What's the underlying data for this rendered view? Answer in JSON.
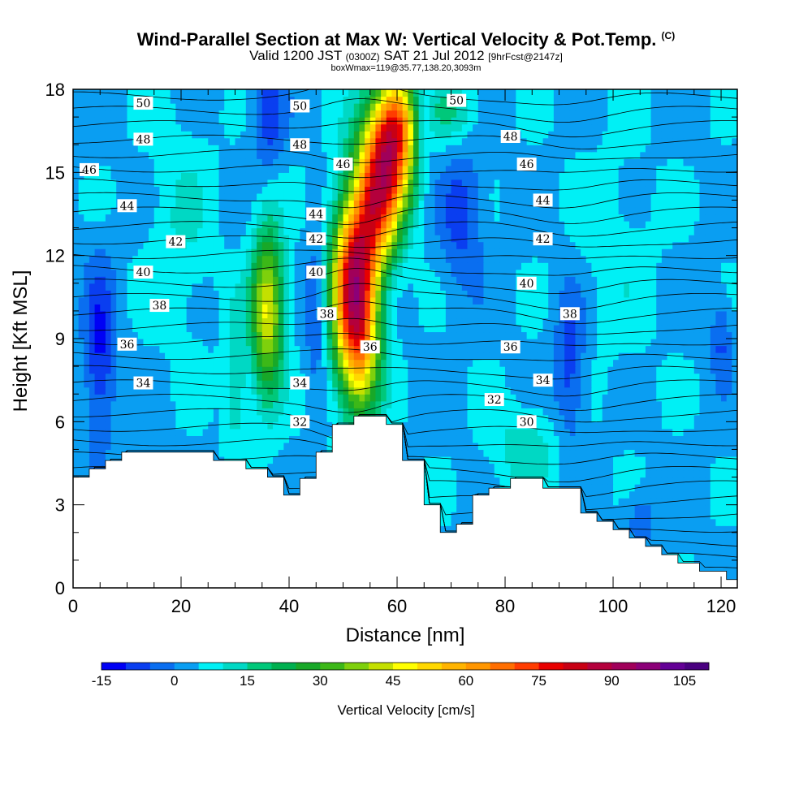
{
  "title_main": "Wind-Parallel Section at Max W: Vertical Velocity & Pot.Temp.",
  "title_mark": "(C)",
  "subtitle_a": "Valid 1200 JST",
  "subtitle_b": "(0300Z)",
  "subtitle_c": "SAT 21 Jul 2012",
  "subtitle_d": "[9hrFcst@2147z]",
  "subtitle2": "boxWmax=119@35.77,138.20,3093m",
  "chart_data": {
    "type": "heatmap",
    "xlabel": "Distance [nm]",
    "ylabel": "Height [Kft MSL]",
    "xlim": [
      0,
      123
    ],
    "ylim": [
      0,
      18
    ],
    "x_ticks": [
      0,
      20,
      40,
      60,
      80,
      100,
      120
    ],
    "y_ticks": [
      0,
      3,
      6,
      9,
      12,
      15,
      18
    ],
    "colorbar": {
      "title": "Vertical Velocity [cm/s]",
      "min": -15,
      "max": 110,
      "step": 5,
      "labels": [
        -15,
        0,
        15,
        30,
        45,
        60,
        75,
        90,
        105
      ],
      "colors": [
        "#0000f5",
        "#0a3ef0",
        "#0a6ef0",
        "#0a9ef2",
        "#00f0f5",
        "#00d8c4",
        "#00c87a",
        "#00b050",
        "#18a828",
        "#3cb818",
        "#7ed00c",
        "#c4e000",
        "#ffff00",
        "#ffd800",
        "#ffb400",
        "#ff9600",
        "#ff6e00",
        "#ff3c00",
        "#e80000",
        "#c80014",
        "#b4003c",
        "#a0005a",
        "#8c0078",
        "#640096",
        "#4a0080"
      ]
    },
    "terrain": [
      [
        0,
        4
      ],
      [
        3,
        4
      ],
      [
        3,
        4.3
      ],
      [
        6,
        4.3
      ],
      [
        6,
        4.6
      ],
      [
        9,
        4.6
      ],
      [
        9,
        4.9
      ],
      [
        26,
        4.9
      ],
      [
        26,
        4.6
      ],
      [
        32,
        4.6
      ],
      [
        32,
        4.3
      ],
      [
        36,
        4.3
      ],
      [
        36,
        4.0
      ],
      [
        39,
        4.0
      ],
      [
        39,
        3.35
      ],
      [
        42,
        3.35
      ],
      [
        42,
        3.95
      ],
      [
        45,
        3.95
      ],
      [
        45,
        4.9
      ],
      [
        48,
        4.9
      ],
      [
        48,
        5.9
      ],
      [
        52,
        5.9
      ],
      [
        52,
        6.2
      ],
      [
        58,
        6.2
      ],
      [
        58,
        5.9
      ],
      [
        61,
        5.9
      ],
      [
        61,
        4.6
      ],
      [
        65,
        4.6
      ],
      [
        65,
        3.0
      ],
      [
        68,
        3.0
      ],
      [
        68,
        2.0
      ],
      [
        71,
        2.0
      ],
      [
        71,
        2.3
      ],
      [
        74,
        2.3
      ],
      [
        74,
        3.35
      ],
      [
        77,
        3.35
      ],
      [
        77,
        3.6
      ],
      [
        81,
        3.6
      ],
      [
        81,
        3.95
      ],
      [
        87,
        3.95
      ],
      [
        87,
        3.6
      ],
      [
        94,
        3.6
      ],
      [
        94,
        2.7
      ],
      [
        97,
        2.7
      ],
      [
        97,
        2.4
      ],
      [
        100,
        2.4
      ],
      [
        100,
        2.1
      ],
      [
        103,
        2.1
      ],
      [
        103,
        1.8
      ],
      [
        106,
        1.8
      ],
      [
        106,
        1.5
      ],
      [
        109,
        1.5
      ],
      [
        109,
        1.2
      ],
      [
        112,
        1.2
      ],
      [
        112,
        0.9
      ],
      [
        116,
        0.9
      ],
      [
        116,
        0.6
      ],
      [
        121,
        0.6
      ],
      [
        121,
        0.3
      ],
      [
        123,
        0.3
      ]
    ],
    "w_features": [
      {
        "x": 58,
        "y": 15.5,
        "rx": 5,
        "ry": 2.2,
        "w": 70
      },
      {
        "x": 52,
        "y": 11.2,
        "rx": 4,
        "ry": 2.8,
        "w": 72
      },
      {
        "x": 53,
        "y": 8.5,
        "rx": 4,
        "ry": 2.5,
        "w": 40
      },
      {
        "x": 56,
        "y": 13.2,
        "rx": 4,
        "ry": 2,
        "w": 40
      },
      {
        "x": 60,
        "y": 17.2,
        "rx": 3.5,
        "ry": 1.6,
        "w": 35
      },
      {
        "x": 36,
        "y": 10,
        "rx": 3,
        "ry": 3,
        "w": 42
      },
      {
        "x": 30,
        "y": 7.5,
        "rx": 2,
        "ry": 2.5,
        "w": 12
      },
      {
        "x": 70,
        "y": 17.2,
        "rx": 5,
        "ry": 1.2,
        "w": 12
      },
      {
        "x": 84,
        "y": 5,
        "rx": 6,
        "ry": 1.5,
        "w": 10
      },
      {
        "x": 5,
        "y": 8.5,
        "rx": 3,
        "ry": 3.2,
        "w": -15
      },
      {
        "x": 36,
        "y": 17,
        "rx": 3,
        "ry": 2,
        "w": -12
      },
      {
        "x": 65,
        "y": 17,
        "rx": 2,
        "ry": 2,
        "w": -10
      },
      {
        "x": 72,
        "y": 13.5,
        "rx": 4,
        "ry": 2.5,
        "w": -12
      },
      {
        "x": 92,
        "y": 8,
        "rx": 3,
        "ry": 3,
        "w": -12
      },
      {
        "x": 45,
        "y": 10,
        "rx": 2,
        "ry": 3,
        "w": -10
      },
      {
        "x": 120,
        "y": 9,
        "rx": 2,
        "ry": 1.5,
        "w": -10
      },
      {
        "x": 105,
        "y": 2.5,
        "rx": 3,
        "ry": 1,
        "w": -8
      },
      {
        "x": 20,
        "y": 13,
        "rx": 6,
        "ry": 4,
        "w": 6
      },
      {
        "x": 100,
        "y": 12,
        "rx": 8,
        "ry": 4,
        "w": 4
      }
    ],
    "theta_labels": [
      {
        "text": "50",
        "x": 13,
        "y": 17.5
      },
      {
        "text": "50",
        "x": 42,
        "y": 17.4
      },
      {
        "text": "50",
        "x": 71,
        "y": 17.6
      },
      {
        "text": "48",
        "x": 13,
        "y": 16.2
      },
      {
        "text": "48",
        "x": 42,
        "y": 16.0
      },
      {
        "text": "48",
        "x": 81,
        "y": 16.3
      },
      {
        "text": "46",
        "x": 3,
        "y": 15.1
      },
      {
        "text": "46",
        "x": 50,
        "y": 15.3
      },
      {
        "text": "46",
        "x": 84,
        "y": 15.3
      },
      {
        "text": "44",
        "x": 10,
        "y": 13.8
      },
      {
        "text": "44",
        "x": 45,
        "y": 13.5
      },
      {
        "text": "44",
        "x": 87,
        "y": 14.0
      },
      {
        "text": "42",
        "x": 19,
        "y": 12.5
      },
      {
        "text": "42",
        "x": 45,
        "y": 12.6
      },
      {
        "text": "42",
        "x": 87,
        "y": 12.6
      },
      {
        "text": "40",
        "x": 13,
        "y": 11.4
      },
      {
        "text": "40",
        "x": 45,
        "y": 11.4
      },
      {
        "text": "40",
        "x": 84,
        "y": 11.0
      },
      {
        "text": "38",
        "x": 16,
        "y": 10.2
      },
      {
        "text": "38",
        "x": 47,
        "y": 9.9
      },
      {
        "text": "38",
        "x": 92,
        "y": 9.9
      },
      {
        "text": "36",
        "x": 10,
        "y": 8.8
      },
      {
        "text": "36",
        "x": 55,
        "y": 8.7
      },
      {
        "text": "36",
        "x": 81,
        "y": 8.7
      },
      {
        "text": "34",
        "x": 13,
        "y": 7.4
      },
      {
        "text": "34",
        "x": 42,
        "y": 7.4
      },
      {
        "text": "34",
        "x": 87,
        "y": 7.5
      },
      {
        "text": "32",
        "x": 42,
        "y": 6.0
      },
      {
        "text": "32",
        "x": 78,
        "y": 6.8
      },
      {
        "text": "30",
        "x": 84,
        "y": 6.0
      }
    ]
  }
}
